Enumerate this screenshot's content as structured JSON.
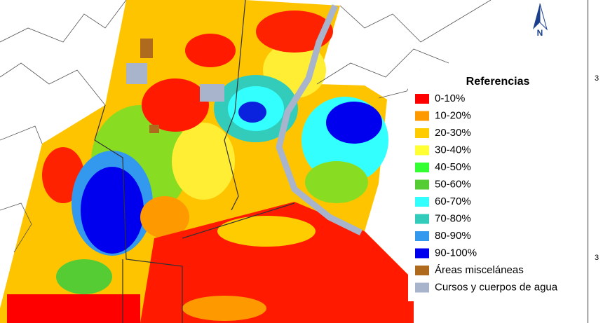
{
  "north_arrow": {
    "label": "N"
  },
  "edge_labels": [
    "3",
    "3"
  ],
  "legend": {
    "title": "Referencias",
    "items": [
      {
        "label": "0-10%",
        "color": "#ff0000"
      },
      {
        "label": "10-20%",
        "color": "#ff9900"
      },
      {
        "label": "20-30%",
        "color": "#ffcc00"
      },
      {
        "label": "30-40%",
        "color": "#ffff33"
      },
      {
        "label": "40-50%",
        "color": "#33ff33"
      },
      {
        "label": "50-60%",
        "color": "#55cc33"
      },
      {
        "label": "60-70%",
        "color": "#33ffff"
      },
      {
        "label": "70-80%",
        "color": "#33ccbb"
      },
      {
        "label": "80-90%",
        "color": "#3399ee"
      },
      {
        "label": "90-100%",
        "color": "#0000ee"
      },
      {
        "label": "Áreas misceláneas",
        "color": "#b06a1e"
      },
      {
        "label": "Cursos y cuerpos de agua",
        "color": "#a8b4cc"
      }
    ]
  }
}
